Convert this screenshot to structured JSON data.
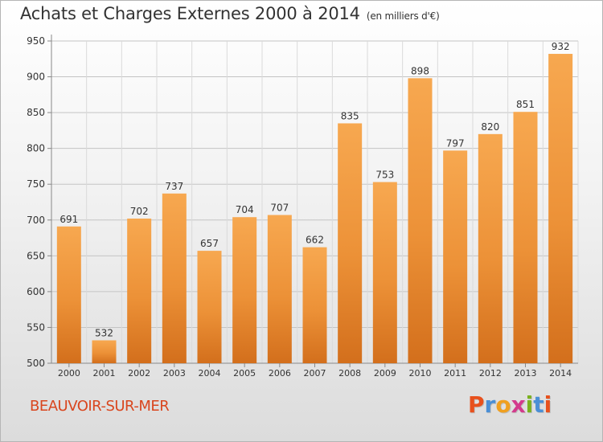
{
  "header": {
    "title": "Achats et Charges Externes 2000 à 2014",
    "unit": "(en milliers d'€)"
  },
  "footer": {
    "place": "BEAUVOIR-SUR-MER",
    "logo": "Proxiti"
  },
  "colors": {
    "bar_light": "#f6a54e",
    "bar_dark": "#d87420",
    "place_text": "#d9461e",
    "logo_letters": [
      "#e8511d",
      "#4a8fd6",
      "#f0a020",
      "#d33a8c",
      "#7ab21f",
      "#4a8fd6",
      "#e8511d"
    ]
  },
  "chart_data": {
    "type": "bar",
    "categories": [
      "2000",
      "2001",
      "2002",
      "2003",
      "2004",
      "2005",
      "2006",
      "2007",
      "2008",
      "2009",
      "2010",
      "2011",
      "2012",
      "2013",
      "2014"
    ],
    "values": [
      691,
      532,
      702,
      737,
      657,
      704,
      707,
      662,
      835,
      753,
      898,
      797,
      820,
      851,
      932
    ],
    "title": "Achats et Charges Externes 2000 à 2014",
    "ylim": [
      500,
      950
    ],
    "yticks": [
      500,
      550,
      600,
      650,
      700,
      750,
      800,
      850,
      900,
      950
    ],
    "grid": true,
    "legend": "none"
  }
}
